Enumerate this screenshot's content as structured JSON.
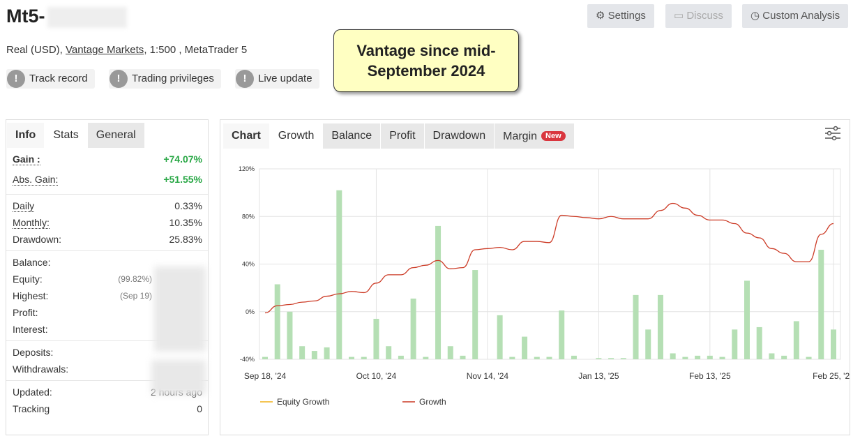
{
  "header": {
    "title": "Mt5-",
    "buttons": [
      "Settings",
      "Discuss",
      "Custom Analysis"
    ]
  },
  "account": {
    "prefix": "Real (USD),",
    "broker": "Vantage Markets",
    "suffix": ", 1:500 , MetaTrader 5"
  },
  "badges": [
    "Track record",
    "Trading privileges",
    "Live update"
  ],
  "note": "Vantage since mid-September 2024",
  "stats": {
    "tabs": [
      "Info",
      "Stats",
      "General"
    ],
    "groups": [
      [
        {
          "label": "Gain :",
          "value": "+74.07%"
        },
        {
          "label": "Abs. Gain:",
          "value": "+51.55%"
        }
      ],
      [
        {
          "label": "Daily",
          "value": "0.33%"
        },
        {
          "label": "Monthly:",
          "value": "10.35%"
        },
        {
          "label": "Drawdown:",
          "value": "25.83%"
        }
      ],
      [
        {
          "label": "Balance:"
        },
        {
          "label": "Equity:",
          "value": "(99.82%)"
        },
        {
          "label": "Highest:",
          "value": "(Sep 19)"
        },
        {
          "label": "Profit:"
        },
        {
          "label": "Interest:"
        }
      ],
      [
        {
          "label": "Deposits:"
        },
        {
          "label": "Withdrawals:"
        }
      ],
      [
        {
          "label": "Updated:",
          "value": "2 hours ago"
        },
        {
          "label": "Tracking",
          "value": "0"
        }
      ]
    ]
  },
  "chart_tabs": {
    "tabs": [
      "Chart",
      "Growth",
      "Balance",
      "Profit",
      "Drawdown",
      "Margin"
    ],
    "new_badge": "New"
  },
  "chart_data": {
    "type": "bar",
    "categories": [
      "Sep 18, '24",
      null,
      null,
      null,
      null,
      null,
      null,
      null,
      null,
      "Oct 10, '24",
      null,
      null,
      null,
      null,
      null,
      null,
      null,
      null,
      "Nov 14, '24",
      null,
      null,
      null,
      null,
      null,
      null,
      null,
      null,
      "Jan 13, '25",
      null,
      null,
      null,
      null,
      null,
      null,
      null,
      null,
      "Feb 13, '25",
      null,
      null,
      null,
      null,
      null,
      null,
      null,
      null,
      null,
      "Feb 25, '25"
    ],
    "values": [
      -38,
      23,
      0,
      -29,
      -33,
      -30,
      102,
      -38,
      -38,
      -6,
      -29,
      -37,
      11,
      -38,
      72,
      -29,
      -37,
      35,
      -40,
      -3,
      -38,
      -21,
      -38,
      -38,
      1,
      -37,
      -40,
      -39,
      -39,
      -39,
      14,
      -15,
      14,
      -35,
      -38,
      -37,
      -37,
      -38,
      -15,
      26,
      -13,
      -35,
      -37,
      -8,
      -38,
      52,
      -15
    ],
    "color": "#b5dfb4",
    "line": {
      "type": "line",
      "color": "#cc3a25",
      "values": [
        -1,
        5,
        6,
        8,
        9,
        13,
        15,
        17,
        16,
        24,
        31,
        31,
        37,
        39,
        43,
        36,
        37,
        52,
        53,
        54,
        52,
        59,
        59,
        58,
        81,
        80,
        79,
        78,
        80,
        78,
        78,
        78,
        85,
        91,
        87,
        81,
        77,
        77,
        74,
        66,
        62,
        53,
        49,
        42,
        42,
        65,
        74
      ]
    },
    "ylim": [
      -40,
      120
    ],
    "yticks": [
      {
        "value": -40,
        "label": "-40%"
      },
      {
        "value": 0,
        "label": "0%"
      },
      {
        "value": 40,
        "label": "40%"
      },
      {
        "value": 80,
        "label": "80%"
      },
      {
        "value": 120,
        "label": "120%"
      }
    ],
    "grid": true,
    "legend": [
      {
        "name": "Equity Growth",
        "color": "#f2b21c"
      },
      {
        "name": "Growth",
        "color": "#cc3a25"
      }
    ]
  }
}
